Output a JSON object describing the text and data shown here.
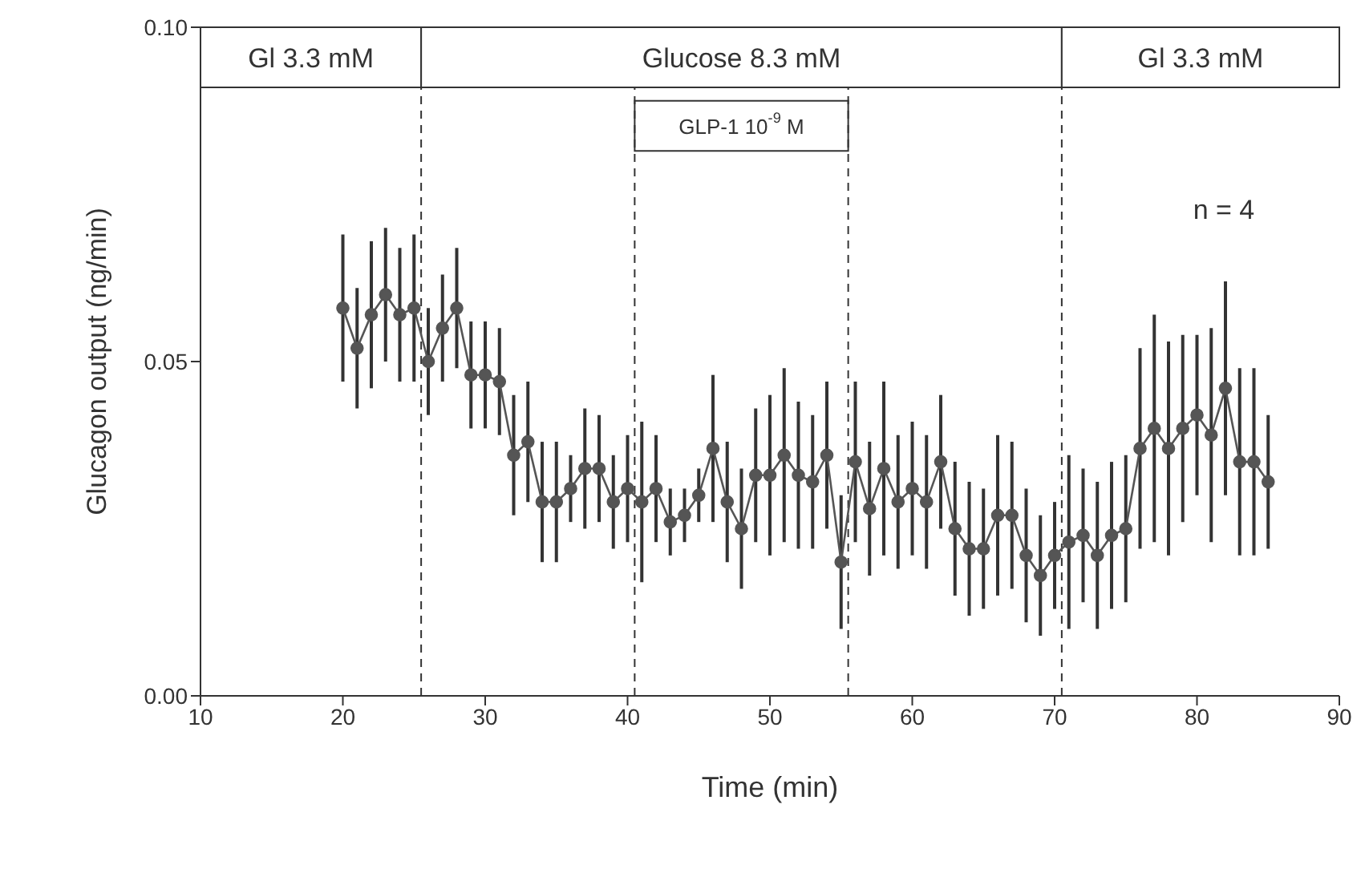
{
  "chart_data": {
    "type": "line",
    "xlabel": "Time (min)",
    "ylabel": "Glucagon output (ng/min)",
    "x": [
      20,
      21,
      22,
      23,
      24,
      25,
      26,
      27,
      28,
      29,
      30,
      31,
      32,
      33,
      34,
      35,
      36,
      37,
      38,
      39,
      40,
      41,
      42,
      43,
      44,
      45,
      46,
      47,
      48,
      49,
      50,
      51,
      52,
      53,
      54,
      55,
      56,
      57,
      58,
      59,
      60,
      61,
      62,
      63,
      64,
      65,
      66,
      67,
      68,
      69,
      70,
      71,
      72,
      73,
      74,
      75,
      76,
      77,
      78,
      79,
      80,
      81,
      82,
      83,
      84,
      85
    ],
    "series": [
      {
        "color": "#555555",
        "values": [
          0.058,
          0.052,
          0.057,
          0.06,
          0.057,
          0.058,
          0.05,
          0.055,
          0.058,
          0.048,
          0.048,
          0.047,
          0.036,
          0.038,
          0.029,
          0.029,
          0.031,
          0.034,
          0.034,
          0.029,
          0.031,
          0.029,
          0.031,
          0.026,
          0.027,
          0.03,
          0.037,
          0.029,
          0.025,
          0.033,
          0.033,
          0.036,
          0.033,
          0.032,
          0.036,
          0.02,
          0.035,
          0.028,
          0.034,
          0.029,
          0.031,
          0.029,
          0.035,
          0.025,
          0.022,
          0.022,
          0.027,
          0.027,
          0.021,
          0.018,
          0.021,
          0.023,
          0.024,
          0.021,
          0.024,
          0.025,
          0.037,
          0.04,
          0.037,
          0.04,
          0.042,
          0.039,
          0.046,
          0.035,
          0.035,
          0.032
        ],
        "errors": [
          0.011,
          0.009,
          0.011,
          0.01,
          0.01,
          0.011,
          0.008,
          0.008,
          0.009,
          0.008,
          0.008,
          0.008,
          0.009,
          0.009,
          0.009,
          0.009,
          0.005,
          0.009,
          0.008,
          0.007,
          0.008,
          0.012,
          0.008,
          0.005,
          0.004,
          0.004,
          0.011,
          0.009,
          0.009,
          0.01,
          0.012,
          0.013,
          0.011,
          0.01,
          0.011,
          0.01,
          0.012,
          0.01,
          0.013,
          0.01,
          0.01,
          0.01,
          0.01,
          0.01,
          0.01,
          0.009,
          0.012,
          0.011,
          0.01,
          0.009,
          0.008,
          0.013,
          0.01,
          0.011,
          0.011,
          0.011,
          0.015,
          0.017,
          0.016,
          0.014,
          0.012,
          0.016,
          0.016,
          0.014,
          0.014,
          0.01
        ]
      }
    ],
    "xlim": [
      10,
      90
    ],
    "xticks": [
      10,
      20,
      30,
      40,
      50,
      60,
      70,
      80,
      90
    ],
    "ylim": [
      0,
      0.1
    ],
    "yticks": [
      {
        "value": 0,
        "label": "0.00"
      },
      {
        "value": 0.05,
        "label": "0.05"
      },
      {
        "value": 0.1,
        "label": "0.10"
      }
    ],
    "marker": "circle",
    "line_style": "solid",
    "grid": false,
    "legend": false,
    "ref_lines": [
      {
        "axis": "x",
        "value": 25.5,
        "line_style": "dashed"
      },
      {
        "axis": "x",
        "value": 40.5,
        "line_style": "dashed"
      },
      {
        "axis": "x",
        "value": 55.5,
        "line_style": "dashed"
      },
      {
        "axis": "x",
        "value": 70.5,
        "line_style": "dashed"
      }
    ],
    "bands": [
      {
        "axis": "x",
        "from": 10,
        "to": 25.5,
        "label": "Gl 3.3 mM"
      },
      {
        "axis": "x",
        "from": 25.5,
        "to": 70.5,
        "label": "Glucose 8.3 mM"
      },
      {
        "axis": "x",
        "from": 70.5,
        "to": 90,
        "label": "Gl 3.3 mM"
      },
      {
        "axis": "x",
        "from": 40.5,
        "to": 55.5,
        "label": "GLP-1 10$^{-9}$ M"
      }
    ],
    "annotations": [
      "n = 4"
    ]
  }
}
